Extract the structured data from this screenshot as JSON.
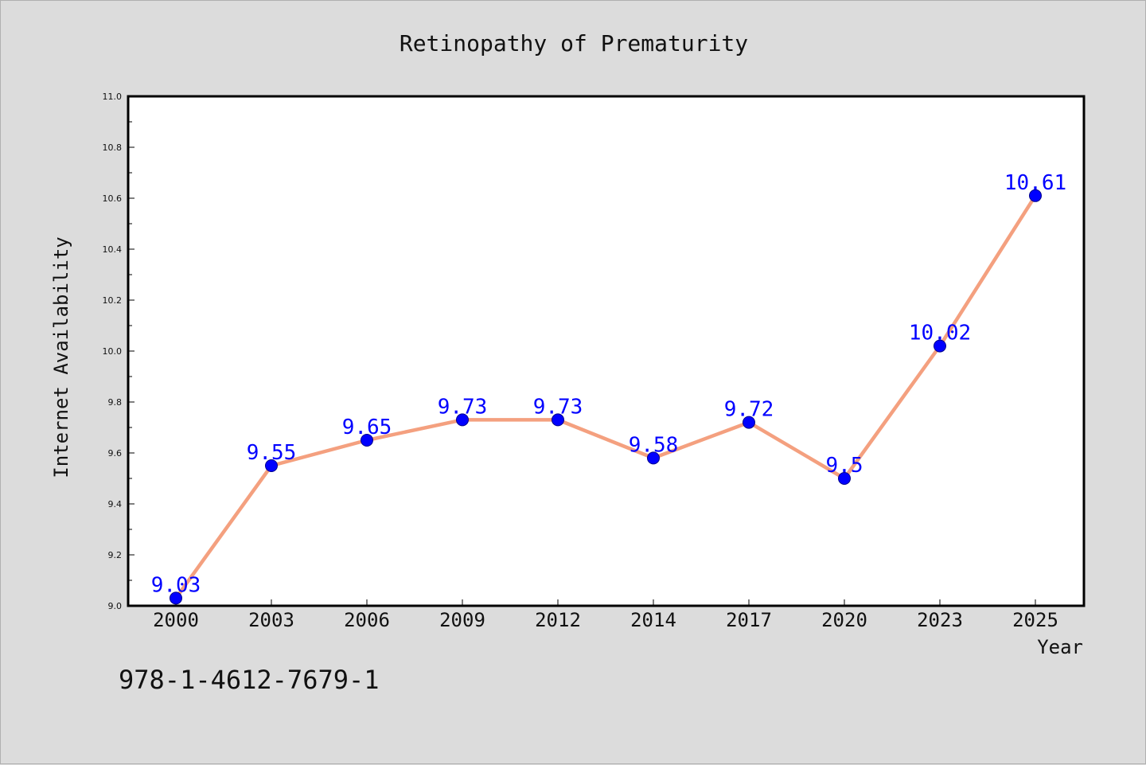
{
  "chart_data": {
    "type": "line",
    "title": "Retinopathy of Prematurity",
    "xlabel": "Year",
    "ylabel": "Internet Availability",
    "categories": [
      "2000",
      "2003",
      "2006",
      "2009",
      "2012",
      "2014",
      "2017",
      "2020",
      "2023",
      "2025"
    ],
    "series": [
      {
        "values": [
          9.03,
          9.55,
          9.65,
          9.73,
          9.73,
          9.58,
          9.72,
          9.5,
          10.02,
          10.61
        ],
        "data_labels": [
          "9.03",
          "9.55",
          "9.65",
          "9.73",
          "9.73",
          "9.58",
          "9.72",
          "9.5",
          "10.02",
          "10.61"
        ],
        "line_color": "#f4a07f",
        "marker_color": "#0000ff",
        "marker_edge_color": "#00008b",
        "label_color": "#0000ff"
      }
    ],
    "ylim": [
      9.0,
      11.0
    ],
    "yticks": [
      "9.0",
      "9.2",
      "9.4",
      "9.6",
      "9.8",
      "10.0",
      "10.2",
      "10.4",
      "10.6",
      "10.8",
      "11.0"
    ],
    "grid": false,
    "legend": "none"
  },
  "footnote": "978-1-4612-7679-1",
  "colors": {
    "background": "#dcdcdc",
    "plot_background": "#ffffff",
    "axes_frame": "#000000"
  }
}
